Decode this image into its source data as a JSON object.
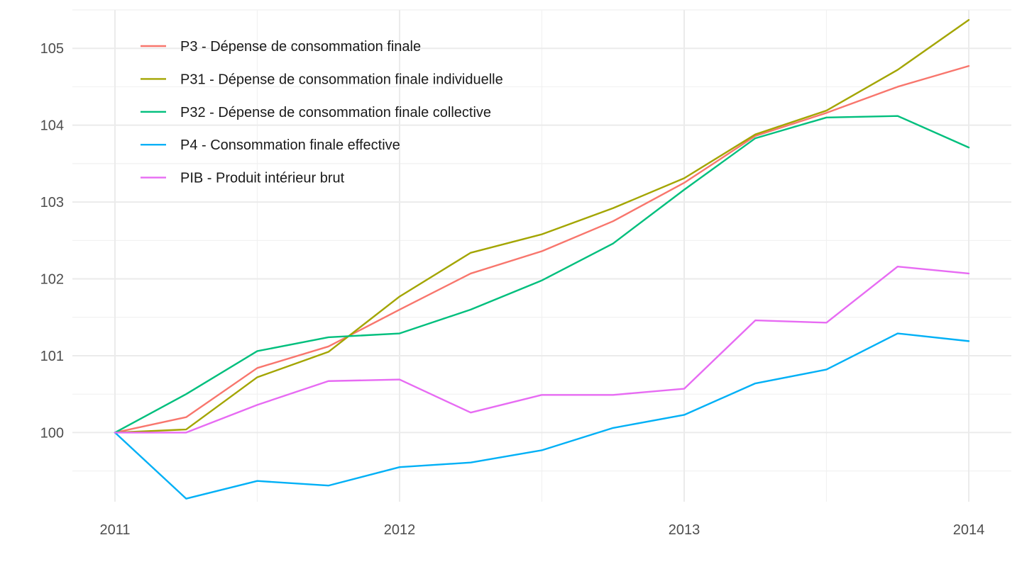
{
  "chart_data": {
    "type": "line",
    "title": "",
    "xlabel": "",
    "ylabel": "",
    "xlim": [
      2011,
      2014
    ],
    "ylim": [
      99.1,
      105.5
    ],
    "x_ticks": [
      {
        "value": 2011,
        "label": "2011"
      },
      {
        "value": 2012,
        "label": "2012"
      },
      {
        "value": 2013,
        "label": "2013"
      },
      {
        "value": 2014,
        "label": "2014"
      }
    ],
    "y_ticks": [
      {
        "value": 100,
        "label": "100"
      },
      {
        "value": 101,
        "label": "101"
      },
      {
        "value": 102,
        "label": "102"
      },
      {
        "value": 103,
        "label": "103"
      },
      {
        "value": 104,
        "label": "104"
      },
      {
        "value": 105,
        "label": "105"
      }
    ],
    "grid": true,
    "legend_position": "top-left",
    "x": [
      2011,
      2011.25,
      2011.5,
      2011.75,
      2012,
      2012.25,
      2012.5,
      2012.75,
      2013,
      2013.25,
      2013.5,
      2013.75,
      2014
    ],
    "series": [
      {
        "name": "P3 - Dépense de consommation finale",
        "color": "#F8766D",
        "values": [
          100,
          100.2,
          100.84,
          101.12,
          101.6,
          102.07,
          102.36,
          102.75,
          103.25,
          103.86,
          104.16,
          104.5,
          104.77
        ]
      },
      {
        "name": "P31 - Dépense de consommation finale individuelle",
        "color": "#A3A500",
        "values": [
          100,
          100.04,
          100.72,
          101.05,
          101.77,
          102.34,
          102.58,
          102.92,
          103.31,
          103.88,
          104.19,
          104.72,
          105.37
        ]
      },
      {
        "name": "P32 - Dépense de consommation finale collective",
        "color": "#00BF7D",
        "values": [
          100,
          100.5,
          101.06,
          101.24,
          101.29,
          101.6,
          101.98,
          102.46,
          103.16,
          103.83,
          104.1,
          104.12,
          103.71
        ]
      },
      {
        "name": "P4 - Consommation finale effective",
        "color": "#00B0F6",
        "values": [
          100,
          99.14,
          99.37,
          99.31,
          99.55,
          99.61,
          99.77,
          100.06,
          100.23,
          100.64,
          100.82,
          101.29,
          101.19
        ]
      },
      {
        "name": "PIB - Produit intérieur brut",
        "color": "#E76BF3",
        "values": [
          100,
          100,
          100.36,
          100.67,
          100.69,
          100.26,
          100.49,
          100.49,
          100.57,
          101.46,
          101.43,
          102.16,
          102.07
        ]
      }
    ]
  }
}
